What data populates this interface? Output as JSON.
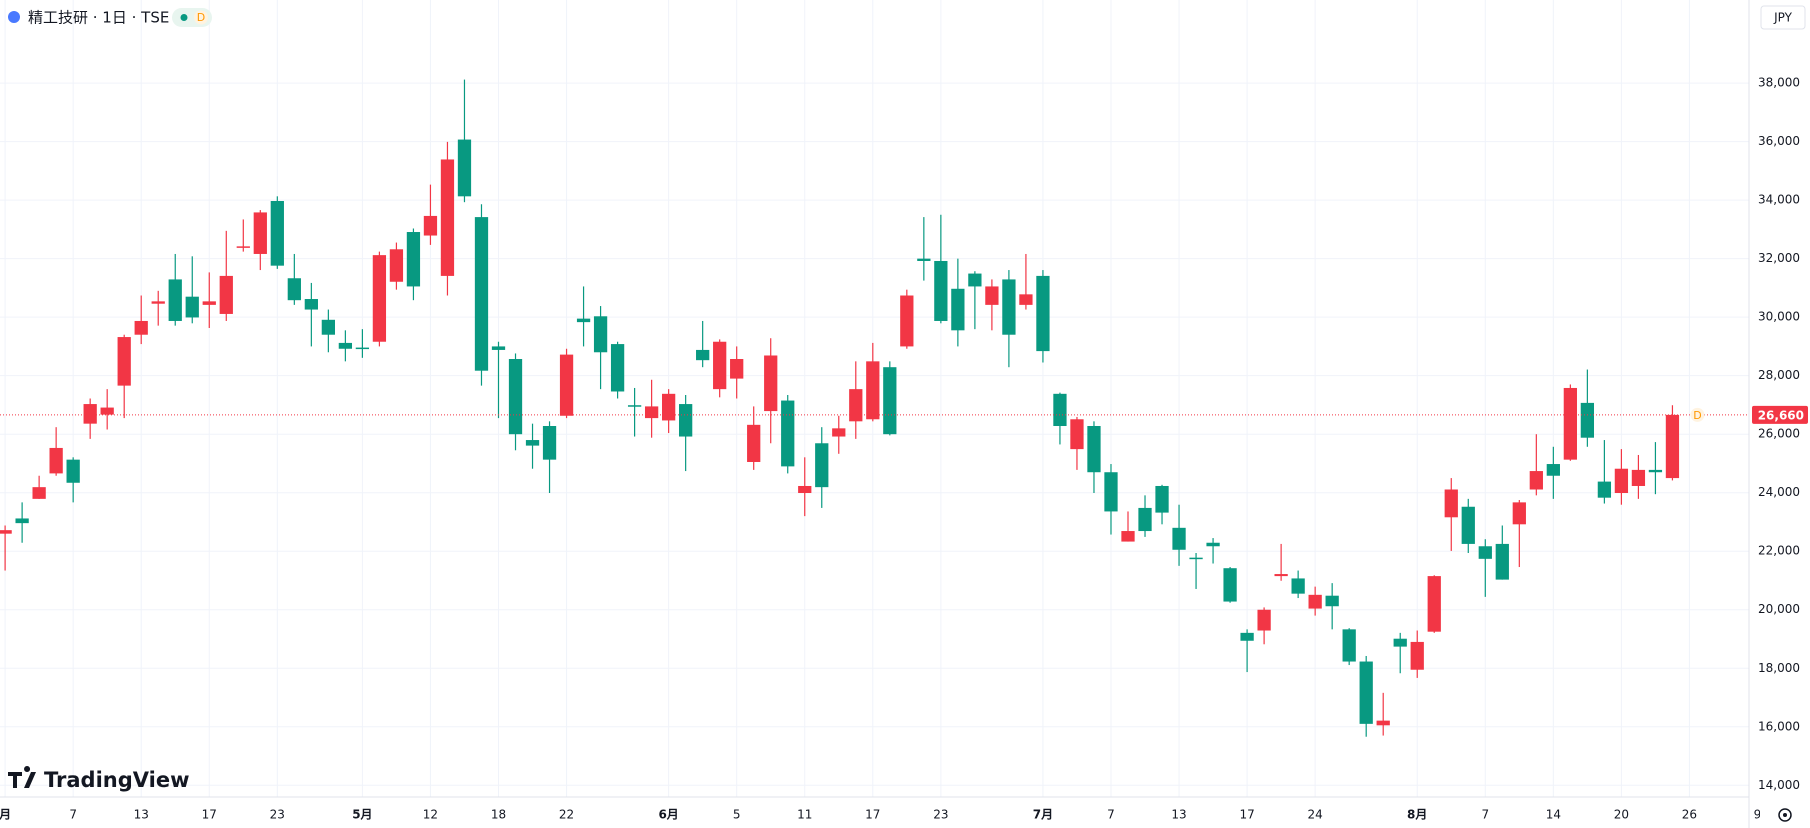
{
  "header": {
    "title": "精工技研 · 1日 · TSE",
    "badge": "D",
    "currency": "JPY",
    "brand": "TradingView"
  },
  "chart_data": {
    "type": "candlestick",
    "up_color": "#f23645",
    "down_color": "#089981",
    "open": [
      22600,
      23120,
      23790,
      24660,
      25130,
      26360,
      26670,
      27660,
      29400,
      30460,
      31290,
      30700,
      30420,
      30110,
      32380,
      32160,
      33970,
      31330,
      30620,
      29910,
      29120,
      28960,
      29160,
      31210,
      32910,
      32790,
      31410,
      36070,
      33420,
      29000,
      28570,
      25800,
      26280,
      26630,
      29950,
      30030,
      29080,
      26990,
      26550,
      26470,
      27030,
      28880,
      27540,
      27900,
      25050,
      26790,
      27150,
      23990,
      25690,
      25920,
      26440,
      26510,
      28290,
      29000,
      32000,
      31920,
      30970,
      31490,
      30420,
      31290,
      30420,
      31410,
      27380,
      25490,
      26280,
      24700,
      22330,
      23480,
      24230,
      22800,
      21780,
      22290,
      21420,
      19210,
      19290,
      21150,
      21070,
      20040,
      20480,
      19330,
      18230,
      16050,
      19010,
      17950,
      19250,
      23160,
      23520,
      22170,
      22250,
      22920,
      24110,
      24980,
      25130,
      27070,
      24380,
      23990,
      24230,
      24780,
      24500
    ],
    "high": [
      22880,
      23670,
      24580,
      26240,
      25210,
      27220,
      27540,
      29400,
      30740,
      30900,
      32160,
      32080,
      31530,
      32950,
      33340,
      33660,
      34130,
      32160,
      31170,
      30260,
      29550,
      29590,
      32240,
      32550,
      33030,
      34530,
      35990,
      38120,
      33860,
      29160,
      28760,
      26360,
      26440,
      28920,
      31050,
      30380,
      29160,
      27580,
      27860,
      27540,
      27340,
      29870,
      29240,
      29000,
      26950,
      29280,
      27340,
      25210,
      26240,
      26630,
      28490,
      29120,
      28490,
      30940,
      33420,
      33500,
      32000,
      31570,
      31290,
      31610,
      32160,
      31610,
      27420,
      26590,
      26440,
      24980,
      23360,
      23910,
      24270,
      23590,
      21940,
      22450,
      21460,
      19330,
      20080,
      22250,
      21340,
      20790,
      20910,
      19370,
      18420,
      17160,
      19210,
      19290,
      21180,
      24500,
      23790,
      22410,
      22880,
      23750,
      26000,
      25570,
      27700,
      28210,
      25800,
      25490,
      25290,
      25730,
      26990
    ],
    "low": [
      21340,
      22290,
      23790,
      24580,
      23670,
      25840,
      26160,
      26550,
      29080,
      29710,
      29710,
      29790,
      29630,
      29870,
      32240,
      31610,
      31650,
      30420,
      29000,
      28800,
      28490,
      28610,
      29000,
      30940,
      30580,
      32470,
      30740,
      33930,
      27660,
      26550,
      25450,
      24820,
      23990,
      26550,
      29000,
      27540,
      27220,
      25920,
      25880,
      26040,
      24740,
      28290,
      27260,
      27220,
      24780,
      25690,
      24660,
      23200,
      23480,
      25330,
      25840,
      26440,
      25960,
      28920,
      31250,
      29790,
      29000,
      29590,
      29550,
      28290,
      30260,
      28450,
      25650,
      24780,
      23990,
      22570,
      22330,
      22490,
      22920,
      21500,
      20710,
      21580,
      20240,
      17870,
      18820,
      20990,
      20400,
      19800,
      19330,
      18110,
      15660,
      15700,
      17830,
      17670,
      19210,
      22010,
      21940,
      20440,
      21030,
      21460,
      23910,
      23790,
      25090,
      25570,
      23630,
      23590,
      23790,
      23950,
      24420
    ],
    "close": [
      22720,
      22960,
      24190,
      25530,
      24340,
      27030,
      26910,
      29320,
      29870,
      30540,
      29870,
      29990,
      30540,
      31410,
      32420,
      33580,
      31760,
      30580,
      30260,
      29400,
      28920,
      28920,
      32120,
      32320,
      31050,
      33460,
      35390,
      34130,
      28170,
      28880,
      26000,
      25610,
      25130,
      28720,
      29830,
      28800,
      27460,
      26950,
      26950,
      27380,
      25920,
      28530,
      29160,
      28570,
      26320,
      28690,
      24900,
      24230,
      24190,
      26200,
      27540,
      28490,
      26000,
      30740,
      31920,
      29870,
      29550,
      31050,
      31050,
      29400,
      30780,
      28840,
      26280,
      26510,
      24700,
      23360,
      22690,
      22690,
      23320,
      22050,
      21740,
      22170,
      20280,
      18940,
      20000,
      21220,
      20550,
      20510,
      20120,
      18230,
      16100,
      16210,
      18740,
      18900,
      21150,
      24110,
      22250,
      21740,
      21030,
      23670,
      24740,
      24580,
      27580,
      25880,
      23830,
      24820,
      24780,
      24700,
      26660
    ],
    "last_price": {
      "value": 26660,
      "label": "26,660"
    },
    "last_badge": "D",
    "xlim": [
      -0.3,
      102.5
    ],
    "xticks": [
      {
        "value": 0,
        "label": "月"
      },
      {
        "value": 4,
        "label": "7"
      },
      {
        "value": 8,
        "label": "13"
      },
      {
        "value": 12,
        "label": "17"
      },
      {
        "value": 16,
        "label": "23"
      },
      {
        "value": 21,
        "label": "5月"
      },
      {
        "value": 25,
        "label": "12"
      },
      {
        "value": 29,
        "label": "18"
      },
      {
        "value": 33,
        "label": "22"
      },
      {
        "value": 39,
        "label": "6月"
      },
      {
        "value": 43,
        "label": "5"
      },
      {
        "value": 47,
        "label": "11"
      },
      {
        "value": 51,
        "label": "17"
      },
      {
        "value": 55,
        "label": "23"
      },
      {
        "value": 61,
        "label": "7月"
      },
      {
        "value": 65,
        "label": "7"
      },
      {
        "value": 69,
        "label": "13"
      },
      {
        "value": 73,
        "label": "17"
      },
      {
        "value": 77,
        "label": "24"
      },
      {
        "value": 83,
        "label": "8月"
      },
      {
        "value": 87,
        "label": "7"
      },
      {
        "value": 91,
        "label": "14"
      },
      {
        "value": 95,
        "label": "20"
      },
      {
        "value": 99,
        "label": "26"
      },
      {
        "value": 103,
        "label": "9"
      }
    ],
    "ylim": [
      13600,
      40840
    ],
    "yticks": [
      {
        "value": 14000,
        "label": "14,000"
      },
      {
        "value": 16000,
        "label": "16,000"
      },
      {
        "value": 18000,
        "label": "18,000"
      },
      {
        "value": 20000,
        "label": "20,000"
      },
      {
        "value": 22000,
        "label": "22,000"
      },
      {
        "value": 24000,
        "label": "24,000"
      },
      {
        "value": 26000,
        "label": "26,000"
      },
      {
        "value": 28000,
        "label": "28,000"
      },
      {
        "value": 30000,
        "label": "30,000"
      },
      {
        "value": 32000,
        "label": "32,000"
      },
      {
        "value": 34000,
        "label": "34,000"
      },
      {
        "value": 36000,
        "label": "36,000"
      },
      {
        "value": 38000,
        "label": "38,000"
      }
    ],
    "grid": true
  }
}
